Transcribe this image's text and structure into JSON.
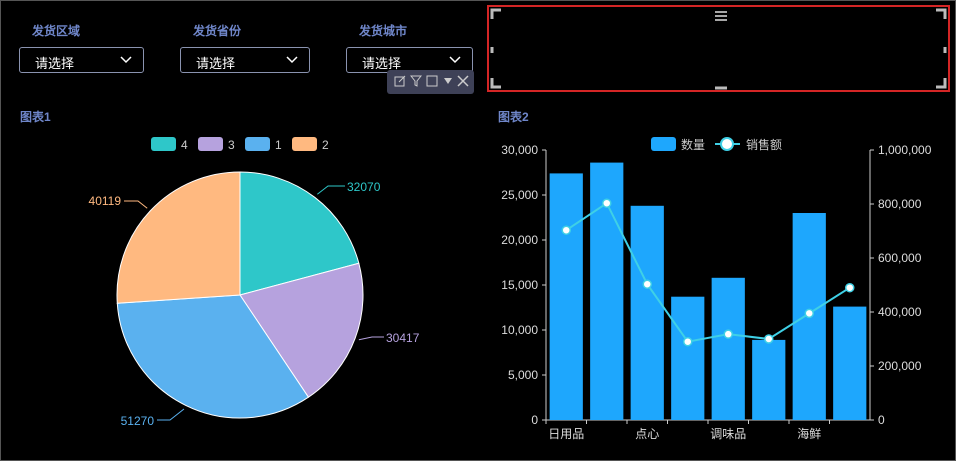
{
  "filters": [
    {
      "label": "发货区域",
      "value": "请选择"
    },
    {
      "label": "发货省份",
      "value": "请选择"
    },
    {
      "label": "发货城市",
      "value": "请选择"
    }
  ],
  "chart1": {
    "title": "图表1"
  },
  "chart2": {
    "title": "图表2"
  },
  "colors": {
    "pie": [
      "#2ec7c9",
      "#b6a2de",
      "#5ab1ef",
      "#ffb980"
    ],
    "bar": "#1ea7fd",
    "line": "#3fd0e6"
  },
  "chart_data": [
    {
      "type": "pie",
      "legend": [
        "4",
        "3",
        "1",
        "2"
      ],
      "slices": [
        {
          "name": "4",
          "value": 32070
        },
        {
          "name": "3",
          "value": 30417
        },
        {
          "name": "1",
          "value": 51270
        },
        {
          "name": "2",
          "value": 40119
        }
      ],
      "legend_position": "top-center"
    },
    {
      "type": "bar",
      "categories": [
        "日用品",
        "",
        "点心",
        "",
        "调味品",
        "",
        "海鲜",
        ""
      ],
      "series": [
        {
          "name": "数量",
          "type": "bar",
          "axis": "left",
          "values": [
            27400,
            28600,
            23800,
            13700,
            15800,
            8900,
            23000,
            12600
          ]
        },
        {
          "name": "销售额",
          "type": "line",
          "axis": "right",
          "values": [
            703000,
            803000,
            503000,
            290000,
            318000,
            300000,
            395000,
            490000
          ]
        }
      ],
      "y_left": {
        "min": 0,
        "max": 30000,
        "ticks": [
          "0",
          "5,000",
          "10,000",
          "15,000",
          "20,000",
          "25,000",
          "30,000"
        ]
      },
      "y_right": {
        "min": 0,
        "max": 1000000,
        "ticks": [
          "0",
          "200,000",
          "400,000",
          "600,000",
          "800,000",
          "1,000,000"
        ]
      },
      "legend_position": "top-center"
    }
  ]
}
